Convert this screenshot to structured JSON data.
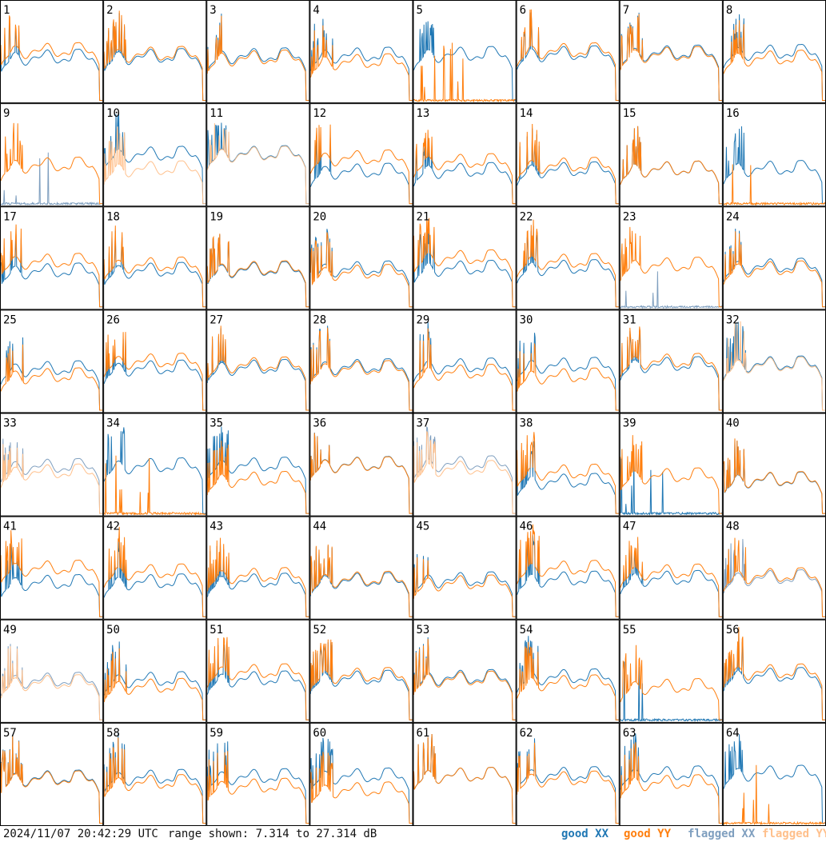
{
  "chart_data": {
    "type": "line",
    "tiles": [
      "1",
      "2",
      "3",
      "4",
      "5",
      "6",
      "7",
      "8",
      "9",
      "10",
      "11",
      "12",
      "13",
      "14",
      "15",
      "16",
      "17",
      "18",
      "19",
      "20",
      "21",
      "22",
      "23",
      "24",
      "25",
      "26",
      "27",
      "28",
      "29",
      "30",
      "31",
      "32",
      "33",
      "34",
      "35",
      "36",
      "37",
      "38",
      "39",
      "40",
      "41",
      "42",
      "43",
      "44",
      "45",
      "46",
      "47",
      "48",
      "49",
      "50",
      "51",
      "52",
      "53",
      "54",
      "55",
      "56",
      "57",
      "58",
      "59",
      "60",
      "61",
      "62",
      "63",
      "64"
    ],
    "ylim": [
      7.314,
      27.314
    ],
    "series": [
      {
        "name": "good XX",
        "color": "#1f77b4"
      },
      {
        "name": "good YY",
        "color": "#ff7f0e"
      },
      {
        "name": "flagged XX",
        "color": "#7f9fbf"
      },
      {
        "name": "flagged YY",
        "color": "#ffc08c"
      }
    ],
    "tile_status": {
      "flagged_xx": [
        "9",
        "23",
        "33",
        "37",
        "48",
        "49"
      ],
      "flagged_yy": [
        "10",
        "11",
        "32",
        "33",
        "37",
        "49"
      ],
      "xx_low": [
        "9",
        "23",
        "39",
        "55"
      ],
      "yy_low": [
        "5",
        "16",
        "34",
        "64"
      ]
    }
  },
  "footer": {
    "timestamp": "2024/11/07 20:42:29 UTC",
    "range": "range shown: 7.314 to 27.314 dB"
  },
  "legend": {
    "good_xx": "good XX",
    "good_yy": "good YY",
    "flagged_xx": "flagged XX",
    "flagged_yy": "flagged YY"
  }
}
